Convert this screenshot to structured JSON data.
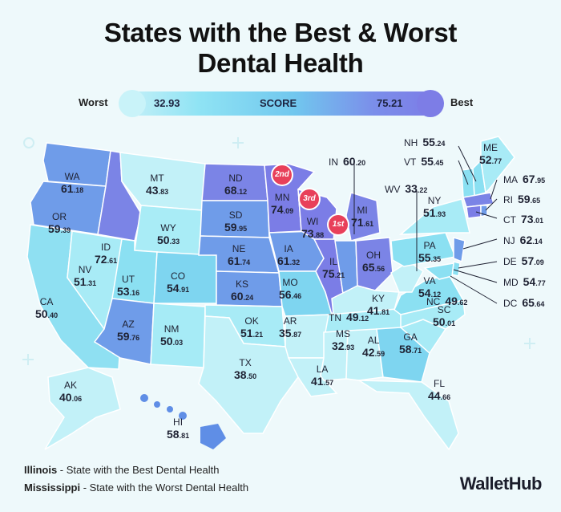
{
  "title_line1": "States with the Best & Worst",
  "title_line2": "Dental Health",
  "legend": {
    "worst_label": "Worst",
    "best_label": "Best",
    "min_value": "32.93",
    "center_label": "SCORE",
    "max_value": "75.21",
    "colors": [
      "#c9f1f8",
      "#8fe3f4",
      "#71c7ee",
      "#7b8eea",
      "#7d7ce6"
    ]
  },
  "states": {
    "WA": {
      "abbr": "WA",
      "int": "61",
      "dec": ".18"
    },
    "OR": {
      "abbr": "OR",
      "int": "59",
      "dec": ".39"
    },
    "CA": {
      "abbr": "CA",
      "int": "50",
      "dec": ".40"
    },
    "NV": {
      "abbr": "NV",
      "int": "51",
      "dec": ".31"
    },
    "ID": {
      "abbr": "ID",
      "int": "72",
      "dec": ".61"
    },
    "MT": {
      "abbr": "MT",
      "int": "43",
      "dec": ".83"
    },
    "WY": {
      "abbr": "WY",
      "int": "50",
      "dec": ".33"
    },
    "UT": {
      "abbr": "UT",
      "int": "53",
      "dec": ".16"
    },
    "AZ": {
      "abbr": "AZ",
      "int": "59",
      "dec": ".76"
    },
    "CO": {
      "abbr": "CO",
      "int": "54",
      "dec": ".91"
    },
    "NM": {
      "abbr": "NM",
      "int": "50",
      "dec": ".03"
    },
    "ND": {
      "abbr": "ND",
      "int": "68",
      "dec": ".12"
    },
    "SD": {
      "abbr": "SD",
      "int": "59",
      "dec": ".95"
    },
    "NE": {
      "abbr": "NE",
      "int": "61",
      "dec": ".74"
    },
    "KS": {
      "abbr": "KS",
      "int": "60",
      "dec": ".24"
    },
    "OK": {
      "abbr": "OK",
      "int": "51",
      "dec": ".21"
    },
    "TX": {
      "abbr": "TX",
      "int": "38",
      "dec": ".50"
    },
    "MN": {
      "abbr": "MN",
      "int": "74",
      "dec": ".09"
    },
    "IA": {
      "abbr": "IA",
      "int": "61",
      "dec": ".32"
    },
    "MO": {
      "abbr": "MO",
      "int": "56",
      "dec": ".46"
    },
    "AR": {
      "abbr": "AR",
      "int": "35",
      "dec": ".87"
    },
    "LA": {
      "abbr": "LA",
      "int": "41",
      "dec": ".57"
    },
    "WI": {
      "abbr": "WI",
      "int": "73",
      "dec": ".88"
    },
    "IL": {
      "abbr": "IL",
      "int": "75",
      "dec": ".21"
    },
    "MI": {
      "abbr": "MI",
      "int": "71",
      "dec": ".61"
    },
    "IN": {
      "abbr": "IN",
      "int": "60",
      "dec": ".20"
    },
    "OH": {
      "abbr": "OH",
      "int": "65",
      "dec": ".56"
    },
    "KY": {
      "abbr": "KY",
      "int": "41",
      "dec": ".81"
    },
    "TN": {
      "abbr": "TN",
      "int": "49",
      "dec": ".12"
    },
    "MS": {
      "abbr": "MS",
      "int": "32",
      "dec": ".93"
    },
    "AL": {
      "abbr": "AL",
      "int": "42",
      "dec": ".59"
    },
    "GA": {
      "abbr": "GA",
      "int": "58",
      "dec": ".71"
    },
    "FL": {
      "abbr": "FL",
      "int": "44",
      "dec": ".66"
    },
    "SC": {
      "abbr": "SC",
      "int": "50",
      "dec": ".01"
    },
    "NC": {
      "abbr": "NC",
      "int": "49",
      "dec": ".62"
    },
    "VA": {
      "abbr": "VA",
      "int": "54",
      "dec": ".12"
    },
    "WV": {
      "abbr": "WV",
      "int": "33",
      "dec": ".22"
    },
    "PA": {
      "abbr": "PA",
      "int": "55",
      "dec": ".35"
    },
    "NY": {
      "abbr": "NY",
      "int": "51",
      "dec": ".93"
    },
    "ME": {
      "abbr": "ME",
      "int": "52",
      "dec": ".77"
    },
    "NH": {
      "abbr": "NH",
      "int": "55",
      "dec": ".24"
    },
    "VT": {
      "abbr": "VT",
      "int": "55",
      "dec": ".45"
    },
    "MA": {
      "abbr": "MA",
      "int": "67",
      "dec": ".95"
    },
    "RI": {
      "abbr": "RI",
      "int": "59",
      "dec": ".65"
    },
    "CT": {
      "abbr": "CT",
      "int": "73",
      "dec": ".01"
    },
    "NJ": {
      "abbr": "NJ",
      "int": "62",
      "dec": ".14"
    },
    "DE": {
      "abbr": "DE",
      "int": "57",
      "dec": ".09"
    },
    "MD": {
      "abbr": "MD",
      "int": "54",
      "dec": ".77"
    },
    "DC": {
      "abbr": "DC",
      "int": "65",
      "dec": ".64"
    },
    "AK": {
      "abbr": "AK",
      "int": "40",
      "dec": ".06"
    },
    "HI": {
      "abbr": "HI",
      "int": "58",
      "dec": ".81"
    }
  },
  "ranks": {
    "first": {
      "num": "1",
      "suffix": "st"
    },
    "second": {
      "num": "2",
      "suffix": "nd"
    },
    "third": {
      "num": "3",
      "suffix": "rd"
    }
  },
  "footer": {
    "best_state": "Illinois",
    "best_text": " - State with the Best Dental Health",
    "worst_state": "Mississippi",
    "worst_text": " - State with the Worst Dental Health"
  },
  "brand": "WalletHub"
}
